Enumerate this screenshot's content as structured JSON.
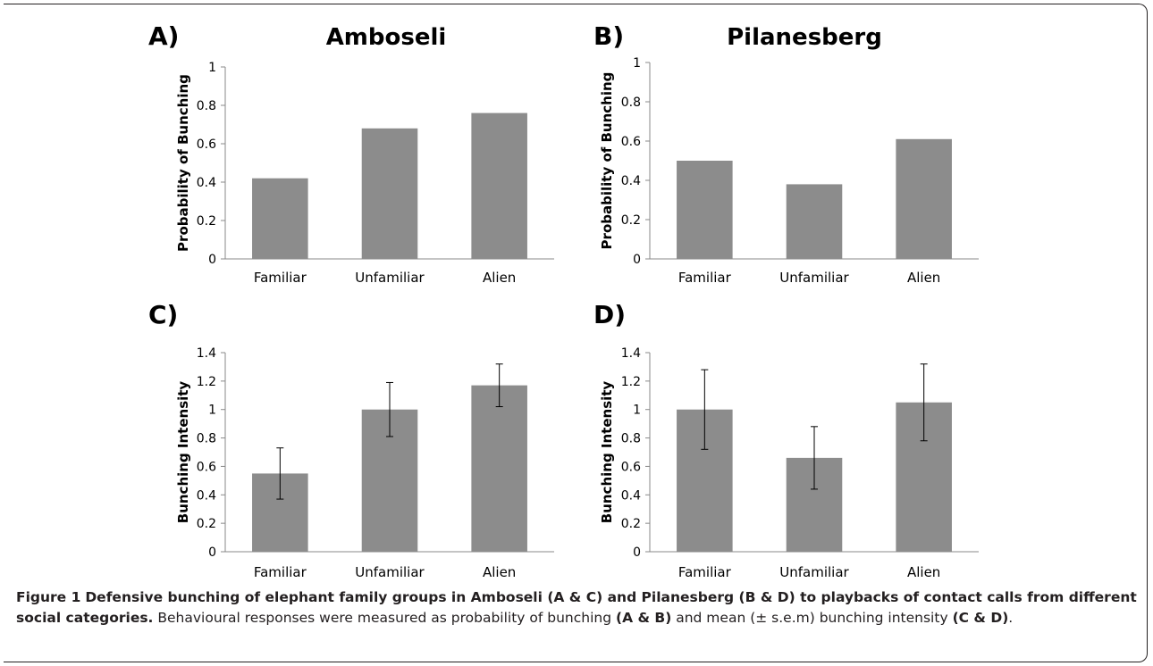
{
  "figure": {
    "caption": {
      "label": "Figure 1",
      "title": "Defensive bunching of elephant family groups in Amboseli (A & C) and Pilanesberg (B & D) to playbacks of contact calls from different social categories.",
      "text_1": "Behavioural responses were measured as probability of bunching",
      "bold_1": "(A & B)",
      "text_2": "and mean (± s.e.m) bunching intensity",
      "bold_2": "(C & D)",
      "text_3": "."
    }
  },
  "chart_data": [
    {
      "panel": "A)",
      "type": "bar",
      "title": "Amboseli",
      "xlabel": "",
      "ylabel": "Probability of Bunching",
      "categories": [
        "Familiar",
        "Unfamiliar",
        "Alien"
      ],
      "values": [
        0.42,
        0.68,
        0.76
      ],
      "ylim": [
        0,
        1
      ],
      "yticks": [
        "0",
        "0.2",
        "0.4",
        "0.6",
        "0.8",
        "1"
      ],
      "grid": false,
      "bar_color": "#8c8c8c"
    },
    {
      "panel": "B)",
      "type": "bar",
      "title": "Pilanesberg",
      "xlabel": "",
      "ylabel": "Probability of Bunching",
      "categories": [
        "Familiar",
        "Unfamiliar",
        "Alien"
      ],
      "values": [
        0.5,
        0.38,
        0.61
      ],
      "ylim": [
        0,
        1
      ],
      "yticks": [
        "0",
        "0.2",
        "0.4",
        "0.6",
        "0.8",
        "1"
      ],
      "grid": false,
      "bar_color": "#8c8c8c"
    },
    {
      "panel": "C)",
      "type": "bar",
      "title": "",
      "xlabel": "",
      "ylabel": "Bunching Intensity",
      "categories": [
        "Familiar",
        "Unfamiliar",
        "Alien"
      ],
      "values": [
        0.55,
        1.0,
        1.17
      ],
      "error": [
        0.18,
        0.19,
        0.15
      ],
      "ylim": [
        0,
        1.4
      ],
      "yticks": [
        "0",
        "0.2",
        "0.4",
        "0.6",
        "0.8",
        "1",
        "1.2",
        "1.4"
      ],
      "grid": false,
      "bar_color": "#8c8c8c"
    },
    {
      "panel": "D)",
      "type": "bar",
      "title": "",
      "xlabel": "",
      "ylabel": "Bunching Intensity",
      "categories": [
        "Familiar",
        "Unfamiliar",
        "Alien"
      ],
      "values": [
        1.0,
        0.66,
        1.05
      ],
      "error": [
        0.28,
        0.22,
        0.27
      ],
      "ylim": [
        0,
        1.4
      ],
      "yticks": [
        "0",
        "0.2",
        "0.4",
        "0.6",
        "0.8",
        "1",
        "1.2",
        "1.4"
      ],
      "grid": false,
      "bar_color": "#8c8c8c"
    }
  ]
}
